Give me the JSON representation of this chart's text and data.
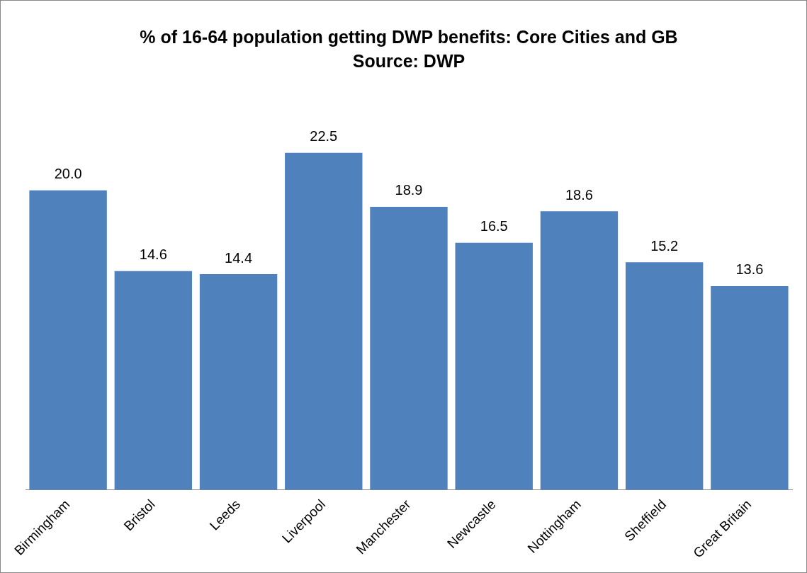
{
  "chart_data": {
    "type": "bar",
    "title": "% of 16-64 population getting DWP benefits: Core Cities and GB",
    "subtitle": "Source: DWP",
    "categories": [
      "Birmingham",
      "Bristol",
      "Leeds",
      "Liverpool",
      "Manchester",
      "Newcastle",
      "Nottingham",
      "Sheffield",
      "Great Britain"
    ],
    "values": [
      20.0,
      14.6,
      14.4,
      22.5,
      18.9,
      16.5,
      18.6,
      15.2,
      13.6
    ],
    "value_labels": [
      "20.0",
      "14.6",
      "14.4",
      "22.5",
      "18.9",
      "16.5",
      "18.6",
      "15.2",
      "13.6"
    ],
    "color": "#4f81bd",
    "grid": false,
    "legend": false
  }
}
